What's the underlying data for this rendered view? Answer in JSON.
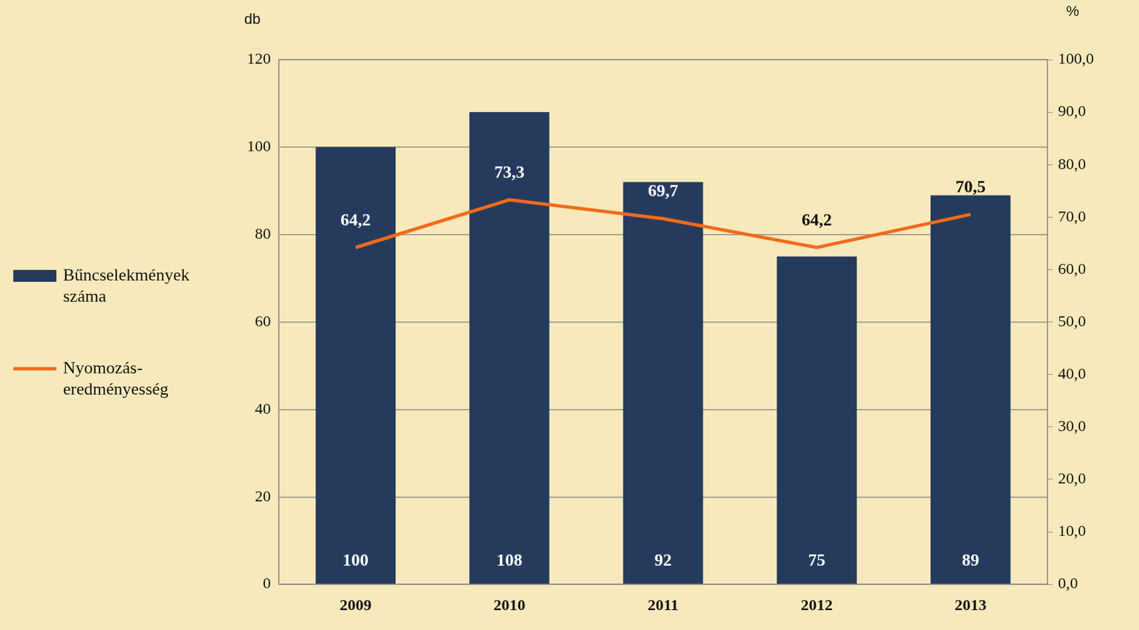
{
  "chart_data": {
    "type": "bar",
    "categories": [
      "2009",
      "2010",
      "2011",
      "2012",
      "2013"
    ],
    "series": [
      {
        "name": "Bűncselekmények száma",
        "type": "bar",
        "color": "#253b5e",
        "values": [
          100,
          108,
          92,
          75,
          89
        ]
      },
      {
        "name": "Nyomozás-eredményesség",
        "type": "line",
        "color": "#f26a1b",
        "axis": "y2",
        "marker": "none",
        "values": [
          64.2,
          73.3,
          69.7,
          64.2,
          70.5
        ],
        "value_labels": [
          "64,2",
          "73,3",
          "69,7",
          "64,2",
          "70,5"
        ]
      }
    ],
    "y_label": "db",
    "y2_label": "%",
    "ylim": [
      0,
      120
    ],
    "yticks": [
      0,
      20,
      40,
      60,
      80,
      100,
      120
    ],
    "y2lim": [
      0,
      100
    ],
    "y2ticks": [
      {
        "value": 0,
        "label": "0,0"
      },
      {
        "value": 10,
        "label": "10,0"
      },
      {
        "value": 20,
        "label": "20,0"
      },
      {
        "value": 30,
        "label": "30,0"
      },
      {
        "value": 40,
        "label": "40,0"
      },
      {
        "value": 50,
        "label": "50,0"
      },
      {
        "value": 60,
        "label": "60,0"
      },
      {
        "value": 70,
        "label": "70,0"
      },
      {
        "value": 80,
        "label": "80,0"
      },
      {
        "value": 90,
        "label": "90,0"
      },
      {
        "value": 100,
        "label": "100,0"
      }
    ],
    "grid": true,
    "data_labels": true,
    "legend": "left"
  }
}
